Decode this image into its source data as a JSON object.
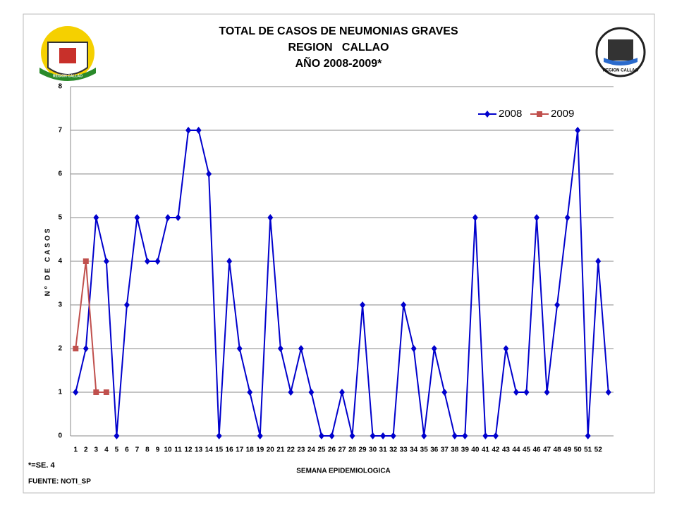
{
  "chart_data": {
    "type": "line",
    "title": [
      "TOTAL DE CASOS DE NEUMONIAS GRAVES",
      "REGION   CALLAO",
      "AÑO 2008-2009*"
    ],
    "y_label": "Nº DE CASOS",
    "x_label": "SEMANA EPIDEMIOLOGICA",
    "note": "*=SE. 4",
    "source": "FUENTE: NOTI_SP",
    "logo_left_text": "REGION CALLAO",
    "logo_right_text": "REGION CALLAO",
    "categories": [
      "1",
      "2",
      "3",
      "4",
      "5",
      "6",
      "7",
      "8",
      "9",
      "10",
      "11",
      "12",
      "13",
      "14",
      "15",
      "16",
      "17",
      "18",
      "19",
      "20",
      "21",
      "22",
      "23",
      "24",
      "25",
      "26",
      "27",
      "28",
      "29",
      "30",
      "31",
      "32",
      "33",
      "34",
      "35",
      "36",
      "37",
      "38",
      "39",
      "40",
      "41",
      "42",
      "43",
      "44",
      "45",
      "46",
      "47",
      "48",
      "49",
      "50",
      "51",
      "52",
      null
    ],
    "series": [
      {
        "name": "2008",
        "color": "#0000cc",
        "marker": "diamond",
        "values": [
          1,
          2,
          5,
          4,
          0,
          3,
          5,
          4,
          4,
          5,
          5,
          7,
          7,
          6,
          0,
          4,
          2,
          1,
          0,
          5,
          2,
          1,
          2,
          1,
          0,
          0,
          1,
          0,
          3,
          0,
          0,
          0,
          3,
          2,
          0,
          2,
          1,
          0,
          0,
          5,
          0,
          0,
          2,
          1,
          1,
          5,
          1,
          3,
          5,
          7,
          0,
          4,
          1
        ]
      },
      {
        "name": "2009",
        "color": "#c0504d",
        "marker": "square",
        "values": [
          2,
          4,
          1,
          1,
          null,
          null,
          null,
          null,
          null,
          null,
          null,
          null,
          null,
          null,
          null,
          null,
          null,
          null,
          null,
          null,
          null,
          null,
          null,
          null,
          null,
          null,
          null,
          null,
          null,
          null,
          null,
          null,
          null,
          null,
          null,
          null,
          null,
          null,
          null,
          null,
          null,
          null,
          null,
          null,
          null,
          null,
          null,
          null,
          null,
          null,
          null,
          null,
          null
        ]
      }
    ],
    "ylim": [
      0,
      8
    ],
    "yticks": [
      0,
      1,
      2,
      3,
      4,
      5,
      6,
      7,
      8
    ],
    "grid": true,
    "legend": "top-right"
  }
}
